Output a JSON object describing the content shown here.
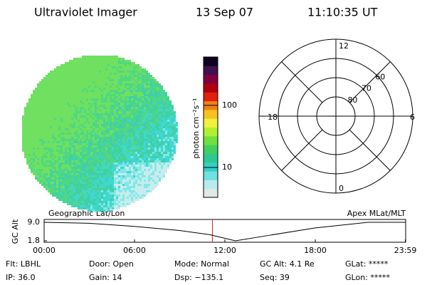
{
  "header": {
    "instrument": "Ultraviolet Imager",
    "date": "13 Sep 07",
    "time": "11:10:35 UT"
  },
  "colorbar": {
    "label": "photon cm⁻²s⁻¹",
    "log": true,
    "clim": [
      3.3,
      600
    ],
    "ticks": [
      10,
      100
    ],
    "colors": [
      "#e0e8e8",
      "#b8ecec",
      "#70e0e0",
      "#30d0c8",
      "#30c890",
      "#40d060",
      "#70e040",
      "#b0f030",
      "#f0f040",
      "#f8c020",
      "#f08010",
      "#e02010",
      "#b00010",
      "#800040",
      "#401050",
      "#100020"
    ]
  },
  "polar": {
    "rlim": [
      50,
      90
    ],
    "lat_ticks": [
      80,
      70,
      60
    ],
    "mlt_labels": [
      {
        "value": 12,
        "label": "12"
      },
      {
        "value": 18,
        "label": "18"
      },
      {
        "value": 6,
        "label": "6"
      },
      {
        "value": 0,
        "label": "0"
      }
    ]
  },
  "timeline": {
    "left_label": "Geographic Lat/Lon",
    "right_label": "Apex MLat/MLT",
    "ylabel": "GC Alt",
    "xlim": [
      0,
      24
    ],
    "ylim": [
      1.25,
      10.1
    ],
    "xticks": [
      {
        "value": 0,
        "label": "00:00"
      },
      {
        "value": 6,
        "label": "06:00"
      },
      {
        "value": 12,
        "label": "12:00"
      },
      {
        "value": 18,
        "label": "18:00"
      },
      {
        "value": 23.98,
        "label": "23:59"
      }
    ],
    "yticks": [
      {
        "value": 9,
        "label": "9.0"
      },
      1.8
    ],
    "x": [
      0,
      3,
      6,
      9,
      11,
      12.7,
      15,
      18,
      21.5,
      24
    ],
    "values": [
      9.0,
      8.6,
      7.4,
      5.8,
      4.2,
      1.8,
      4.0,
      6.8,
      9.0,
      9.0
    ],
    "marker_x": 11.17,
    "color": "#000000",
    "marker_color": "#cc2020"
  },
  "info": [
    [
      "Flt: LBHL",
      "Door: Open",
      "Mode: Normal",
      "GC Alt: 4.1 Re",
      "GLat: *****"
    ],
    [
      "IP: 36.0",
      "Gain: 14",
      "Dsp: −135.1",
      "Seq: 39",
      "GLon: *****"
    ]
  ]
}
